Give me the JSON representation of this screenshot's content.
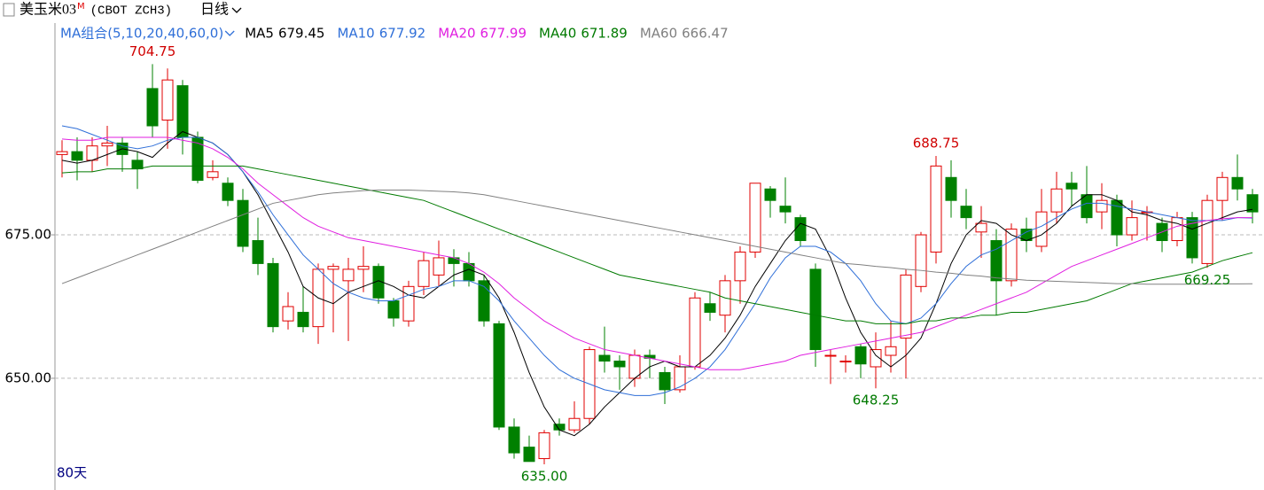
{
  "chart_data": {
    "type": "candlestick",
    "title": "美玉米03",
    "title_badge": "M",
    "subtitle": "(CBOT ZCH3)",
    "period": "日线",
    "ma_group_label": "MA组合(5,10,20,40,60,0)",
    "day_count_label": "80天",
    "ylim": [
      631.3,
      711.3
    ],
    "yticks": [
      {
        "value": 675,
        "label": "675.00"
      },
      {
        "value": 650,
        "label": "650.00"
      }
    ],
    "grid": true,
    "up_color": "#e00000",
    "down_color": "#008000",
    "open": [
      689,
      689.5,
      688,
      690.5,
      691,
      688,
      700.5,
      695,
      701,
      692,
      685,
      684,
      681,
      674,
      670,
      660,
      661.5,
      659,
      669,
      667,
      669,
      669.5,
      663.5,
      660,
      666,
      668,
      671,
      670,
      667,
      659.5,
      641.5,
      638,
      636,
      642,
      641,
      643,
      654,
      653,
      650,
      654,
      651,
      648,
      652,
      663,
      661,
      667,
      672,
      683,
      680,
      678,
      669,
      654,
      653,
      655.5,
      652,
      654,
      657,
      666,
      672,
      685,
      680,
      675.5,
      674,
      667,
      676,
      673,
      679,
      684,
      682,
      679,
      681,
      675,
      679,
      677,
      674,
      678,
      670,
      681,
      685,
      682
    ],
    "high": [
      691.5,
      692,
      692,
      694,
      692,
      689.5,
      704.75,
      704,
      702,
      693,
      688,
      685,
      683,
      678,
      671,
      665,
      666,
      670,
      670,
      671,
      673,
      670,
      664,
      667,
      672,
      674,
      672.5,
      672,
      668,
      660,
      643,
      640,
      641,
      643,
      646,
      655.5,
      659,
      654,
      655,
      655,
      652,
      654,
      665,
      665,
      668,
      673,
      684,
      683.5,
      685,
      678.5,
      670,
      655,
      654,
      656,
      658,
      660,
      669,
      675.5,
      688.75,
      688,
      683,
      680,
      676,
      677,
      678,
      683,
      686,
      686,
      687,
      684,
      682,
      681,
      680,
      678,
      679,
      679,
      682,
      686,
      689,
      683
    ],
    "low": [
      685,
      684.5,
      686,
      687,
      686,
      683,
      692,
      690,
      689,
      684,
      684.5,
      680,
      672,
      668,
      658,
      658.5,
      658,
      656,
      658,
      656.5,
      665,
      663,
      659,
      659,
      664.5,
      666,
      666,
      666,
      659,
      641,
      636,
      635.5,
      635,
      640,
      640.5,
      642,
      651,
      648,
      648.5,
      650,
      645.5,
      647.5,
      651.5,
      660,
      658,
      663,
      671,
      678,
      677,
      673,
      652,
      649,
      651,
      650,
      648.25,
      651,
      650,
      665,
      670,
      678,
      676,
      671,
      661,
      666,
      672,
      672,
      677,
      680,
      677,
      676,
      673,
      674,
      674,
      672,
      673,
      670,
      669.25,
      677.5,
      681,
      677
    ],
    "close": [
      689.5,
      688,
      690.5,
      691,
      689,
      686.5,
      694,
      702,
      692,
      684.5,
      686,
      681,
      673,
      670,
      659,
      662.5,
      659,
      669,
      669.5,
      669,
      669.5,
      664,
      660.5,
      666,
      670.5,
      671,
      670,
      667,
      660,
      641.5,
      637,
      635.5,
      640.5,
      641,
      643,
      655,
      653,
      652,
      654,
      653.5,
      648,
      652,
      664,
      661.5,
      667,
      672,
      684,
      681,
      679,
      674,
      655,
      654,
      653,
      652.5,
      655,
      655.5,
      668,
      675,
      687,
      681,
      678,
      677,
      667,
      676,
      674,
      679,
      683,
      683,
      678,
      681,
      675,
      678,
      679,
      674,
      678,
      671,
      681,
      685,
      683,
      679
    ],
    "series": [
      {
        "name": "MA5",
        "color": "#000000",
        "values": [
          688,
          687.5,
          688,
          689,
          690,
          689.5,
          688.5,
          691,
          693,
          692,
          691,
          689,
          686,
          682,
          677,
          672,
          666,
          664,
          663,
          665,
          666,
          667,
          666,
          664.5,
          664,
          666,
          668,
          669,
          668,
          664,
          658,
          651,
          645,
          641,
          640,
          642,
          645,
          647.5,
          650,
          652,
          653,
          652,
          652,
          654,
          657,
          661,
          666,
          670,
          674,
          677,
          676,
          671,
          664,
          658,
          654,
          652,
          654,
          657,
          663,
          670,
          675,
          677.5,
          677,
          675,
          674,
          675,
          677,
          680,
          682,
          682,
          681,
          679,
          678.5,
          677.5,
          677,
          676,
          677,
          678,
          679,
          679.45
        ]
      },
      {
        "name": "MA10",
        "color": "#2f6fd8",
        "values": [
          694,
          693.5,
          692.5,
          691.5,
          690.5,
          690,
          690.5,
          691.5,
          692,
          692,
          691,
          689,
          686,
          682.5,
          678.5,
          675,
          671.5,
          669,
          666.5,
          665,
          664,
          663.5,
          663.5,
          664.5,
          665.5,
          666,
          667,
          667,
          666,
          663.5,
          660,
          657,
          654,
          651.5,
          650,
          649,
          648,
          647.5,
          647,
          647,
          647.5,
          648.5,
          650,
          652,
          655,
          659,
          663,
          667.5,
          671,
          673,
          673,
          672,
          670,
          667,
          663,
          660,
          659.5,
          660.5,
          663,
          666.5,
          669.5,
          671.5,
          672.5,
          674,
          675.5,
          676.5,
          678,
          679.5,
          680.5,
          680.5,
          680,
          679.5,
          679,
          678.5,
          678,
          677.5,
          677.5,
          677.5,
          678,
          677.92
        ]
      },
      {
        "name": "MA20",
        "color": "#e01ee0",
        "values": [
          691.7,
          691.5,
          691.5,
          692,
          692,
          692,
          692,
          692,
          691.5,
          691,
          690,
          688.5,
          686.5,
          684,
          682,
          680,
          678,
          676.5,
          675.5,
          674.5,
          674,
          673.5,
          673,
          672.5,
          672,
          671.5,
          671,
          670,
          668.5,
          666.5,
          664,
          662,
          660,
          658.5,
          657,
          656,
          655,
          654.5,
          654,
          653.5,
          653,
          652.5,
          652,
          651.5,
          651.5,
          651.5,
          652,
          652.5,
          653,
          654,
          654.5,
          655,
          655.5,
          656,
          656.5,
          657,
          657.5,
          658,
          659,
          660,
          661,
          662,
          663,
          664,
          665,
          666.5,
          668,
          669.5,
          670.5,
          671.5,
          672.5,
          673.5,
          674.5,
          675.5,
          676.5,
          677,
          677.5,
          677.8,
          678,
          677.99
        ]
      },
      {
        "name": "MA40",
        "color": "#007a00",
        "values": [
          685.8,
          686,
          686,
          686.5,
          686.5,
          686.5,
          687,
          687,
          687,
          687,
          687,
          687,
          687,
          686.5,
          686,
          685.5,
          685,
          684.5,
          684,
          683.5,
          683,
          682.5,
          682,
          681.5,
          681,
          680,
          679,
          678,
          677,
          676,
          675,
          674,
          673,
          672,
          671,
          670,
          669,
          668,
          667.5,
          667,
          666.5,
          666,
          665.5,
          665,
          664,
          663.5,
          663,
          662.5,
          662,
          661.5,
          661,
          660.5,
          660,
          660,
          659.5,
          659.5,
          659.5,
          660,
          660,
          660.5,
          660.5,
          661,
          661,
          661.5,
          661.5,
          662,
          662.5,
          663,
          663.5,
          664.5,
          665.5,
          666.5,
          667,
          667.5,
          668,
          668.5,
          669.5,
          670.5,
          671.2,
          671.89
        ]
      },
      {
        "name": "MA60",
        "color": "#808080",
        "values": [
          666.5,
          667.5,
          668.5,
          669.5,
          670.5,
          671.5,
          672.5,
          673.5,
          674.5,
          675.5,
          676.5,
          677.5,
          678.5,
          679.5,
          680.5,
          681,
          681.5,
          682,
          682.3,
          682.5,
          682.7,
          682.8,
          682.8,
          682.8,
          682.7,
          682.6,
          682.5,
          682.3,
          682,
          681.5,
          681,
          680.5,
          680,
          679.5,
          679,
          678.5,
          678,
          677.5,
          677,
          676.5,
          676,
          675.5,
          675,
          674.5,
          674,
          673.5,
          673,
          672.5,
          672,
          671.5,
          671,
          670.5,
          670,
          669.8,
          669.5,
          669.3,
          669,
          668.8,
          668.5,
          668.3,
          668,
          667.8,
          667.5,
          667.3,
          667.1,
          667,
          666.9,
          666.8,
          666.7,
          666.6,
          666.5,
          666.5,
          666.4,
          666.4,
          666.4,
          666.4,
          666.4,
          666.45,
          666.45,
          666.47
        ]
      }
    ],
    "annotations": [
      {
        "value": 704.75,
        "label": "704.75",
        "kind": "high",
        "color": "#d00000"
      },
      {
        "value": 688.75,
        "label": "688.75",
        "kind": "high",
        "color": "#d00000"
      },
      {
        "value": 635,
        "label": "635.00",
        "kind": "low",
        "color": "#007a00"
      },
      {
        "value": 648.25,
        "label": "648.25",
        "kind": "low",
        "color": "#007a00"
      },
      {
        "value": 669.25,
        "label": "669.25",
        "kind": "low",
        "color": "#007a00"
      }
    ]
  }
}
